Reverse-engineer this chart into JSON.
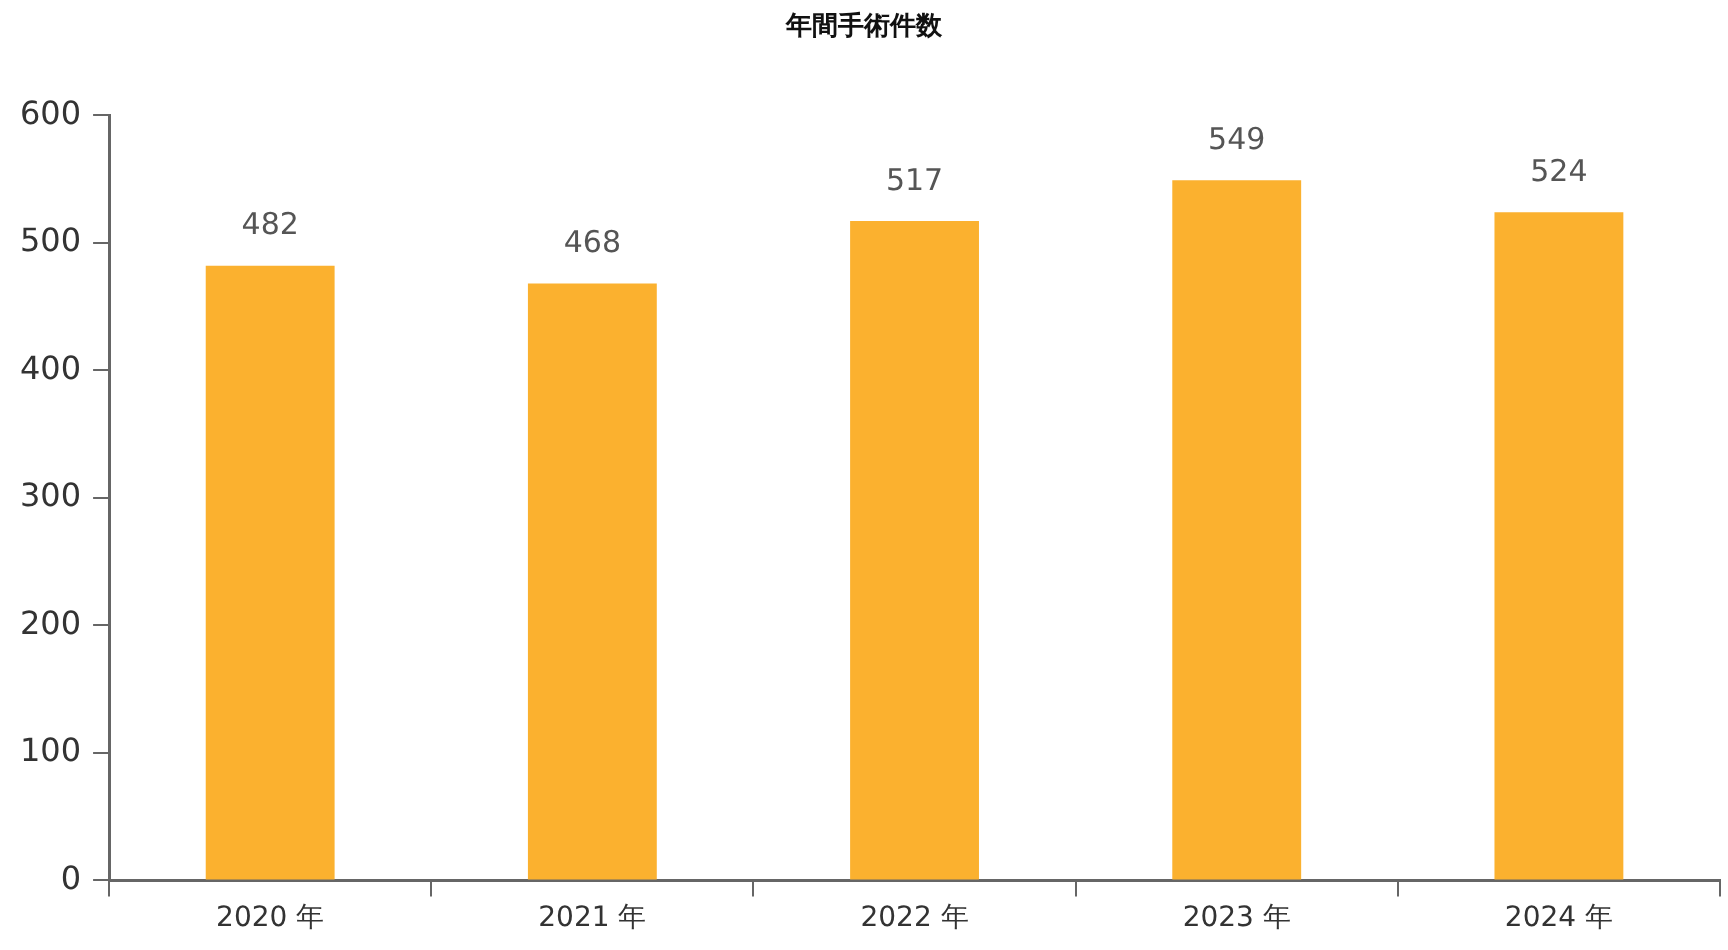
{
  "chart_data": {
    "type": "bar",
    "title": "年間手術件数",
    "categories": [
      "2020 年",
      "2021 年",
      "2022 年",
      "2023 年",
      "2024 年"
    ],
    "values": [
      482,
      468,
      517,
      549,
      524
    ],
    "color": "#fbb12f",
    "ylim": [
      0,
      600
    ],
    "yticks": [
      0,
      100,
      200,
      300,
      400,
      500,
      600
    ],
    "data_labels": true,
    "legend": false
  }
}
